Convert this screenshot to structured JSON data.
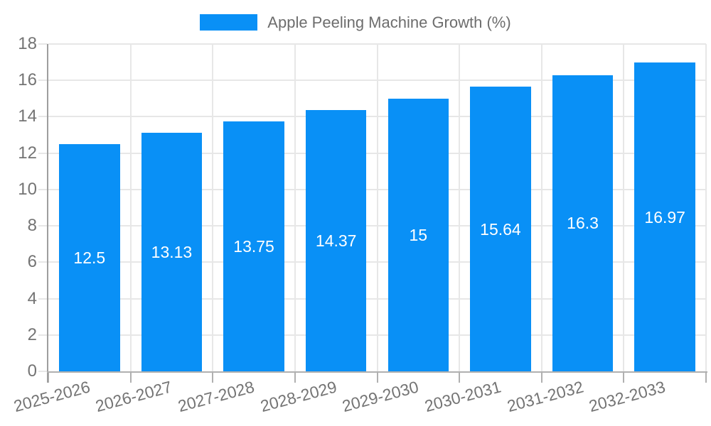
{
  "chart_data": {
    "type": "bar",
    "title": "",
    "legend_label": "Apple Peeling Machine Growth (%)",
    "legend_position": "top-center",
    "categories": [
      "2025-2026",
      "2026-2027",
      "2027-2028",
      "2028-2029",
      "2029-2030",
      "2030-2031",
      "2031-2032",
      "2032-2033"
    ],
    "values": [
      12.5,
      13.13,
      13.75,
      14.37,
      15,
      15.64,
      16.3,
      16.97
    ],
    "value_labels": [
      "12.5",
      "13.13",
      "13.75",
      "14.37",
      "15",
      "15.64",
      "16.3",
      "16.97"
    ],
    "xlabel": "",
    "ylabel": "",
    "ylim": [
      0,
      18
    ],
    "yticks": [
      0,
      2,
      4,
      6,
      8,
      10,
      12,
      14,
      16,
      18
    ],
    "grid": true,
    "x_label_rotation_deg": -15,
    "colors": {
      "bar": "#0990F6",
      "value_label": "#ffffff",
      "tick_label": "#747474",
      "legend_text": "#6d6d6d",
      "grid_line": "#e7e7e7",
      "y_axis_line": "#9e9e9e",
      "x_axis_line": "#b0b0b0"
    }
  }
}
